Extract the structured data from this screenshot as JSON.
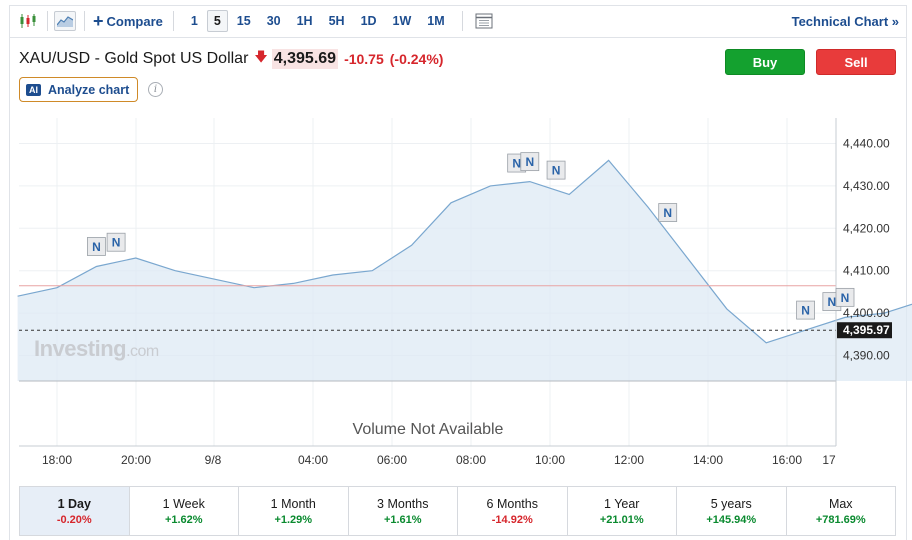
{
  "toolbar": {
    "compare_label": "Compare",
    "intervals": [
      "1",
      "5",
      "15",
      "30",
      "1H",
      "5H",
      "1D",
      "1W",
      "1M"
    ],
    "active_interval": "5",
    "technical_chart_label": "Technical Chart »",
    "icons": [
      "candlestick-icon",
      "area-chart-icon",
      "plus-icon",
      "calendar-icon"
    ]
  },
  "header": {
    "title": "XAU/USD - Gold Spot US Dollar",
    "price": "4,395.69",
    "change": "-10.75",
    "change_pct": "(-0.24%)",
    "buy_label": "Buy",
    "sell_label": "Sell",
    "analyze_badge": "AI",
    "analyze_label": "Analyze chart",
    "info_glyph": "i",
    "colors": {
      "buy": "#14a12f",
      "sell": "#e83b3b",
      "down": "#d6262c",
      "link": "#1d4d8f"
    }
  },
  "chart_data": {
    "type": "area",
    "x": [
      "17:00",
      "18:00",
      "19:00",
      "20:00",
      "21:00",
      "22:00",
      "23:00",
      "00:00",
      "01:00",
      "02:00",
      "03:00",
      "04:00",
      "05:00",
      "06:00",
      "07:00",
      "08:00",
      "09:00",
      "10:00",
      "11:00",
      "12:00",
      "13:00",
      "14:00",
      "15:00",
      "16:00",
      "16:50"
    ],
    "y": [
      4404,
      4406,
      4411,
      4413,
      4410,
      4408,
      4406,
      4407,
      4409,
      4410,
      4416,
      4426,
      4430,
      4431,
      4428,
      4436,
      4425,
      4413,
      4401,
      4393,
      4396,
      4399,
      4400,
      4403,
      4396
    ],
    "y_ticks": [
      "4,390.00",
      "4,400.00",
      "4,410.00",
      "4,420.00",
      "4,430.00",
      "4,440.00"
    ],
    "ylim": [
      4384,
      4446
    ],
    "x_tick_labels": [
      "18:00",
      "20:00",
      "9/8",
      "04:00",
      "06:00",
      "08:00",
      "10:00",
      "12:00",
      "14:00",
      "16:00",
      "17"
    ],
    "last_price_label": "4,395.97",
    "last_price": 4395.97,
    "previous_close": 4406.44,
    "news_marker": "N",
    "news_markers_at": [
      "19:00",
      "19:30",
      "05:40",
      "06:00",
      "06:40",
      "09:30",
      "13:00",
      "13:40",
      "14:00",
      "16:20"
    ],
    "grid": true,
    "volume_text": "Volume Not Available",
    "watermark": {
      "brand": "Investing",
      "suffix": ".com"
    },
    "colors": {
      "line": "#7aa7cf",
      "fill": "#dde9f4",
      "prev_close": "#e8a3a3"
    }
  },
  "periods": [
    {
      "label": "1 Day",
      "value": "-0.20%",
      "dir": "neg",
      "active": true
    },
    {
      "label": "1 Week",
      "value": "+1.62%",
      "dir": "pos",
      "active": false
    },
    {
      "label": "1 Month",
      "value": "+1.29%",
      "dir": "pos",
      "active": false
    },
    {
      "label": "3 Months",
      "value": "+1.61%",
      "dir": "pos",
      "active": false
    },
    {
      "label": "6 Months",
      "value": "-14.92%",
      "dir": "neg",
      "active": false
    },
    {
      "label": "1 Year",
      "value": "+21.01%",
      "dir": "pos",
      "active": false
    },
    {
      "label": "5 years",
      "value": "+145.94%",
      "dir": "pos",
      "active": false
    },
    {
      "label": "Max",
      "value": "+781.69%",
      "dir": "pos",
      "active": false
    }
  ]
}
